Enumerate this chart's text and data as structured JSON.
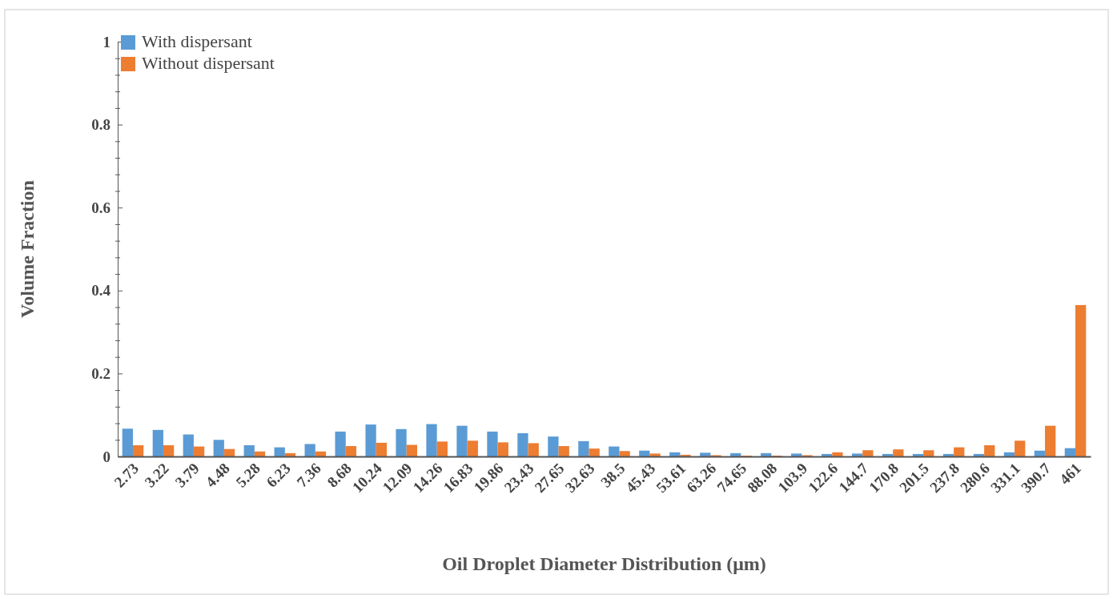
{
  "chart_data": {
    "type": "bar",
    "xlabel": "Oil Droplet Diameter Distribution (μm)",
    "ylabel": "Volume Fraction",
    "categories": [
      "2.73",
      "3.22",
      "3.79",
      "4.48",
      "5.28",
      "6.23",
      "7.36",
      "8.68",
      "10.24",
      "12.09",
      "14.26",
      "16.83",
      "19.86",
      "23.43",
      "27.65",
      "32.63",
      "38.5",
      "45.43",
      "53.61",
      "63.26",
      "74.65",
      "88.08",
      "103.9",
      "122.6",
      "144.7",
      "170.8",
      "201.5",
      "237.8",
      "280.6",
      "331.1",
      "390.7",
      "461"
    ],
    "series": [
      {
        "name": "With dispersant",
        "color": "#5b9bd5",
        "values": [
          0.067,
          0.064,
          0.053,
          0.04,
          0.027,
          0.022,
          0.03,
          0.06,
          0.077,
          0.066,
          0.078,
          0.074,
          0.06,
          0.056,
          0.048,
          0.037,
          0.024,
          0.014,
          0.01,
          0.009,
          0.008,
          0.008,
          0.007,
          0.006,
          0.007,
          0.006,
          0.006,
          0.006,
          0.006,
          0.01,
          0.014,
          0.02
        ]
      },
      {
        "name": "Without dispersant",
        "color": "#ed7d31",
        "values": [
          0.027,
          0.027,
          0.024,
          0.018,
          0.012,
          0.008,
          0.012,
          0.025,
          0.033,
          0.028,
          0.036,
          0.038,
          0.034,
          0.032,
          0.025,
          0.019,
          0.013,
          0.007,
          0.004,
          0.003,
          0.002,
          0.002,
          0.003,
          0.01,
          0.015,
          0.017,
          0.015,
          0.022,
          0.027,
          0.038,
          0.074,
          0.365
        ]
      }
    ],
    "ylim": [
      0,
      1
    ],
    "yticks": [
      {
        "value": 0,
        "label": "0"
      },
      {
        "value": 0.04,
        "label": null
      },
      {
        "value": 0.08,
        "label": null
      },
      {
        "value": 0.12,
        "label": null
      },
      {
        "value": 0.16,
        "label": null
      },
      {
        "value": 0.2,
        "label": "0.2"
      },
      {
        "value": 0.24,
        "label": null
      },
      {
        "value": 0.28,
        "label": null
      },
      {
        "value": 0.32,
        "label": null
      },
      {
        "value": 0.36,
        "label": null
      },
      {
        "value": 0.4,
        "label": "0.4"
      },
      {
        "value": 0.44,
        "label": null
      },
      {
        "value": 0.48,
        "label": null
      },
      {
        "value": 0.52,
        "label": null
      },
      {
        "value": 0.56,
        "label": null
      },
      {
        "value": 0.6,
        "label": "0.6"
      },
      {
        "value": 0.64,
        "label": null
      },
      {
        "value": 0.68,
        "label": null
      },
      {
        "value": 0.72,
        "label": null
      },
      {
        "value": 0.76,
        "label": null
      },
      {
        "value": 0.8,
        "label": "0.8"
      },
      {
        "value": 0.84,
        "label": null
      },
      {
        "value": 0.88,
        "label": null
      },
      {
        "value": 0.92,
        "label": null
      },
      {
        "value": 0.96,
        "label": null
      },
      {
        "value": 1,
        "label": "1"
      }
    ],
    "legend": "top left",
    "grid": false
  }
}
